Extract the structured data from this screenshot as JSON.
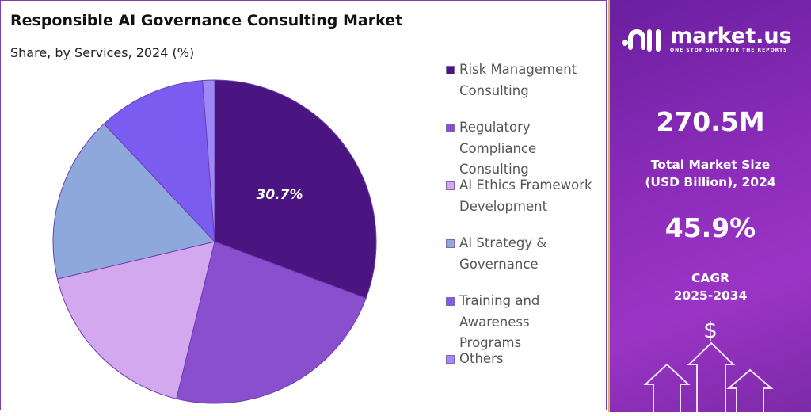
{
  "chart_data": {
    "type": "pie",
    "title": "Responsible AI Governance Consulting Market",
    "subtitle": "Share, by Services, 2024 (%)",
    "categories": [
      "Risk Management Consulting",
      "Regulatory Compliance Consulting",
      "AI Ethics Framework Development",
      "AI Strategy & Governance",
      "Training and Awareness Programs",
      "Others"
    ],
    "values": [
      30.7,
      23.1,
      17.5,
      16.7,
      10.8,
      1.2
    ],
    "colors": [
      "#4a1580",
      "#8a4fcf",
      "#d3a8ef",
      "#8fa8dc",
      "#7b5cf0",
      "#9d88f5"
    ],
    "data_labels": [
      {
        "index": 0,
        "text": "30.7%"
      }
    ],
    "legend_position": "right"
  },
  "legend_lines": [
    [
      "Risk Management",
      "Consulting"
    ],
    [
      "Regulatory",
      "Compliance",
      "Consulting"
    ],
    [
      "AI Ethics Framework",
      "Development"
    ],
    [
      "AI Strategy &",
      "Governance"
    ],
    [
      "Training and",
      "Awareness",
      "Programs"
    ],
    [
      "Others"
    ]
  ],
  "panel": {
    "brand": "market.us",
    "tagline": "ONE STOP SHOP FOR THE REPORTS",
    "market_size": "270.5M",
    "market_size_label_1": "Total Market Size",
    "market_size_label_2": "(USD Billion), 2024",
    "cagr": "45.9%",
    "cagr_label_1": "CAGR",
    "cagr_label_2": "2025-2034",
    "dollar": "$"
  }
}
